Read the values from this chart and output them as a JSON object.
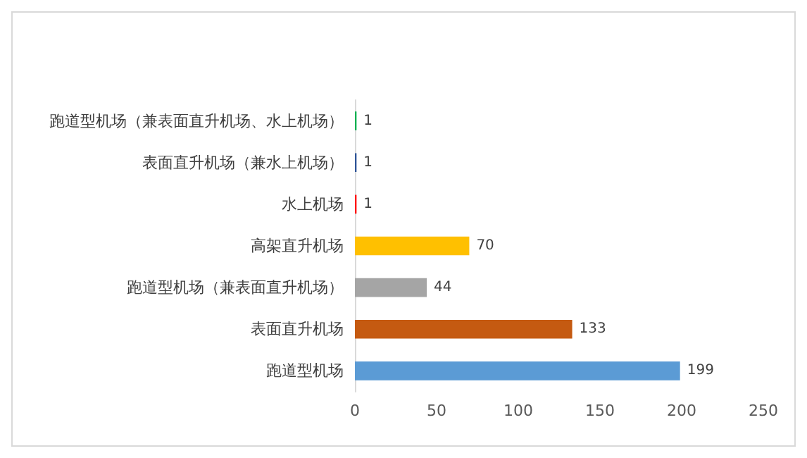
{
  "chart_data": {
    "type": "bar",
    "orientation": "horizontal",
    "categories": [
      "跑道型机场（兼表面直升机场、水上机场）",
      "表面直升机场（兼水上机场）",
      "水上机场",
      "高架直升机场",
      "跑道型机场（兼表面直升机场）",
      "表面直升机场",
      "跑道型机场"
    ],
    "values": [
      1,
      1,
      1,
      70,
      44,
      133,
      199
    ],
    "colors": [
      "#00b050",
      "#2f5597",
      "#ff0000",
      "#ffc000",
      "#a5a5a5",
      "#c55a11",
      "#5b9bd5"
    ],
    "xlim": [
      0,
      250
    ],
    "xticks": [
      0,
      50,
      100,
      150,
      200,
      250
    ],
    "data_labels": true,
    "grid": false
  }
}
